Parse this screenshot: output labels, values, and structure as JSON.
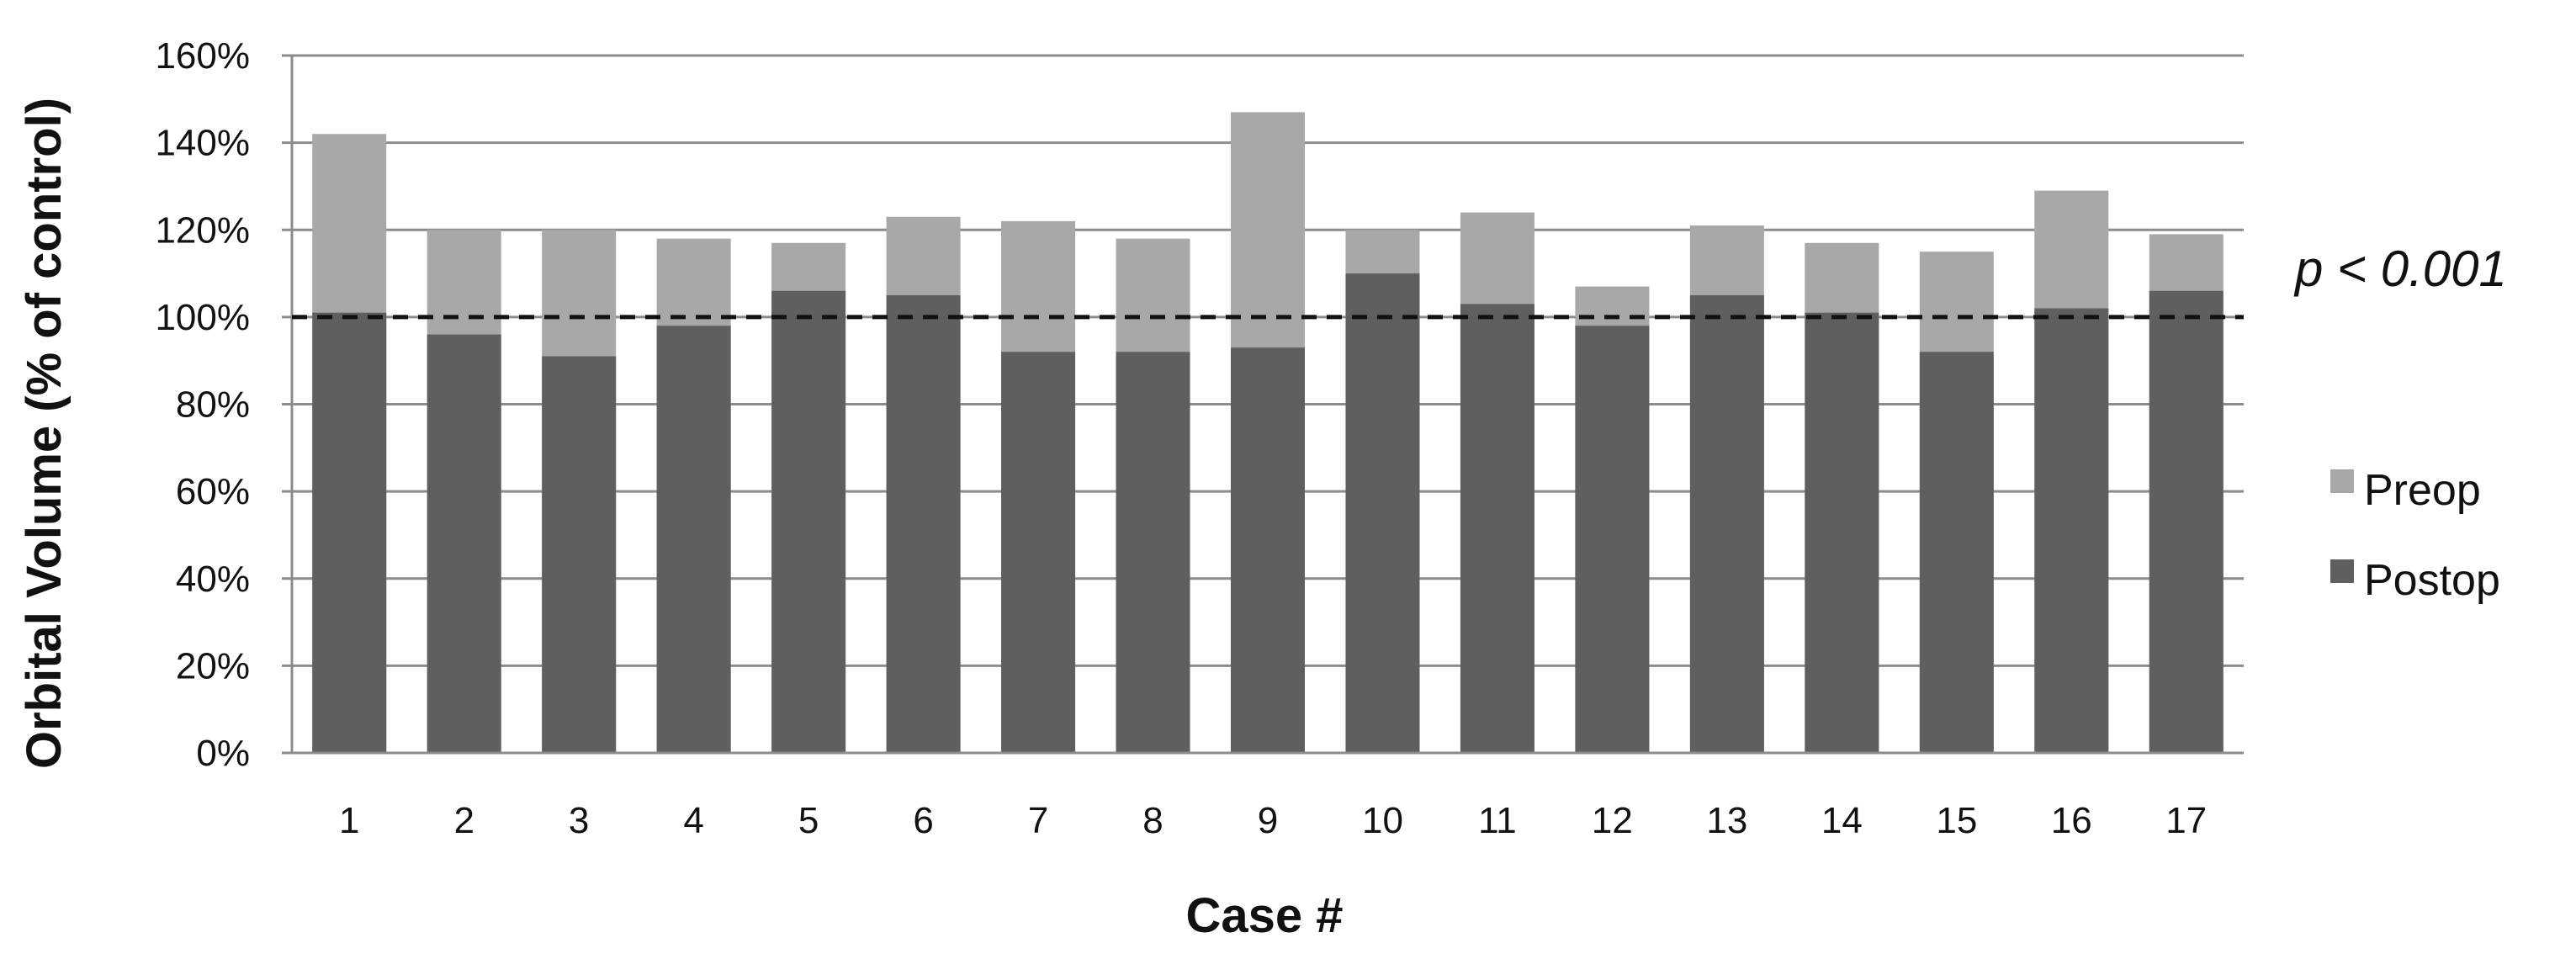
{
  "chart_data": {
    "type": "bar",
    "mode": "overlay",
    "categories": [
      "1",
      "2",
      "3",
      "4",
      "5",
      "6",
      "7",
      "8",
      "9",
      "10",
      "11",
      "12",
      "13",
      "14",
      "15",
      "16",
      "17"
    ],
    "series": [
      {
        "name": "Preop",
        "color": "#a8a8a8",
        "values": [
          142,
          120,
          120,
          118,
          117,
          123,
          122,
          118,
          147,
          120,
          124,
          107,
          121,
          117,
          115,
          129,
          119
        ]
      },
      {
        "name": "Postop",
        "color": "#5f5f5f",
        "values": [
          101,
          96,
          91,
          98,
          106,
          105,
          92,
          92,
          93,
          110,
          103,
          98,
          105,
          101,
          92,
          102,
          106
        ]
      }
    ],
    "xlabel": "Case #",
    "ylabel": "Orbital Volume (% of control)",
    "ylim": [
      0,
      160
    ],
    "yticks": [
      "0%",
      "20%",
      "40%",
      "60%",
      "80%",
      "100%",
      "120%",
      "140%",
      "160%"
    ],
    "reference_line": {
      "value": 100,
      "style": "dashed",
      "label": "p < 0.001"
    },
    "grid": "horizontal",
    "legend_position": "right"
  }
}
